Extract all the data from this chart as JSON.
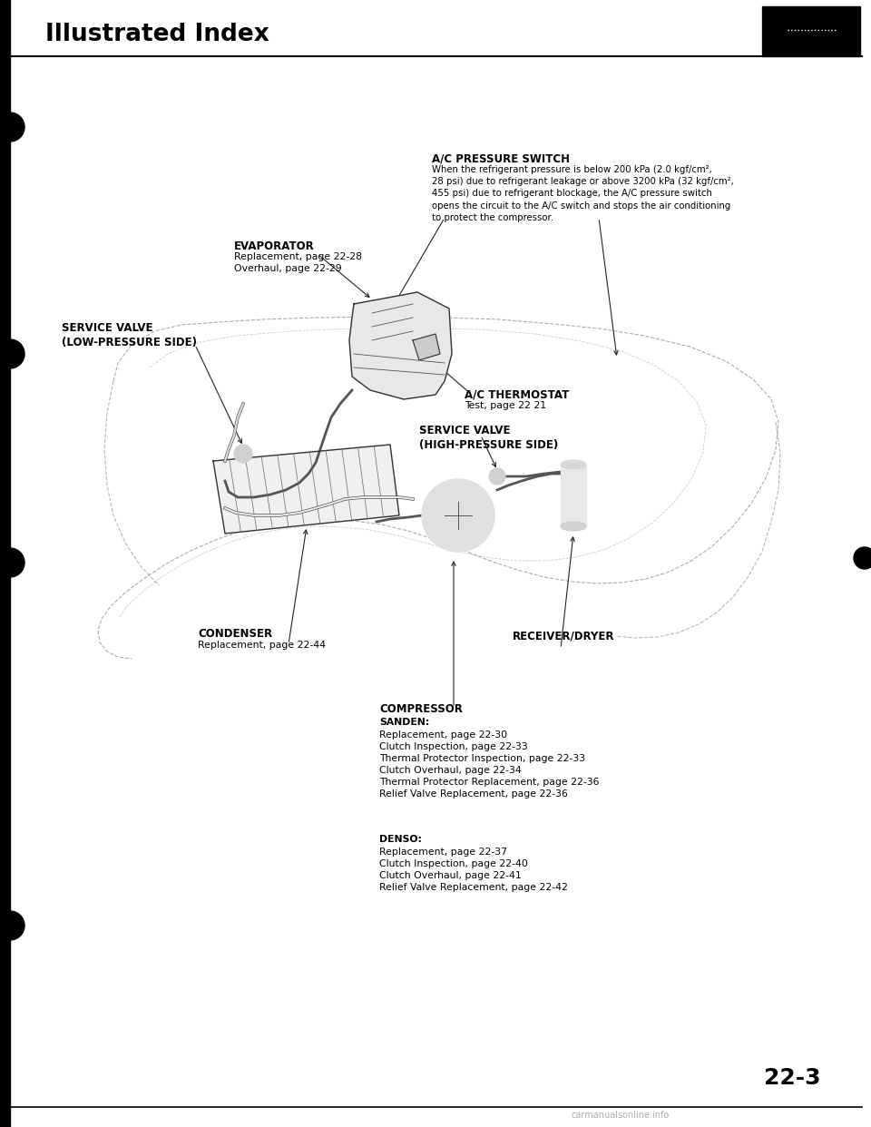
{
  "title": "Illustrated Index",
  "page_number": "22-3",
  "background_color": "#ffffff",
  "labels": {
    "ac_pressure_switch_title": "A/C PRESSURE SWITCH",
    "ac_pressure_switch_body": "When the refrigerant pressure is below 200 kPa (2.0 kgf/cm²,\n28 psi) due to refrigerant leakage or above 3200 kPa (32 kgf/cm²,\n455 psi) due to refrigerant blockage, the A/C pressure switch\nopens the circuit to the A/C switch and stops the air conditioning\nto protect the compressor.",
    "evaporator_title": "EVAPORATOR",
    "evaporator_body": "Replacement, page 22-28\nOverhaul, page 22-29",
    "service_valve_low": "SERVICE VALVE\n(LOW-PRESSURE SIDE)",
    "ac_thermostat_title": "A/C THERMOSTAT",
    "ac_thermostat_body": "Test, page 22 21",
    "service_valve_high": "SERVICE VALVE\n(HIGH-PRESSURE SIDE)",
    "condenser_title": "CONDENSER",
    "condenser_body": "Replacement, page 22-44",
    "receiver_dryer": "RECEIVER/DRYER",
    "compressor_title": "COMPRESSOR",
    "sanden_title": "SANDEN:",
    "sanden_body": "Replacement, page 22-30\nClutch Inspection, page 22-33\nThermal Protector Inspection, page 22-33\nClutch Overhaul, page 22-34\nThermal Protector Replacement, page 22-36\nRelief Valve Replacement, page 22-36",
    "denso_title": "DENSO:",
    "denso_body": "Replacement, page 22-37\nClutch Inspection, page 22-40\nClutch Overhaul, page 22-41\nRelief Valve Replacement, page 22-42"
  },
  "watermark": "carmanualsonline.info",
  "line_color": "#333333",
  "bold_color": "#000000"
}
